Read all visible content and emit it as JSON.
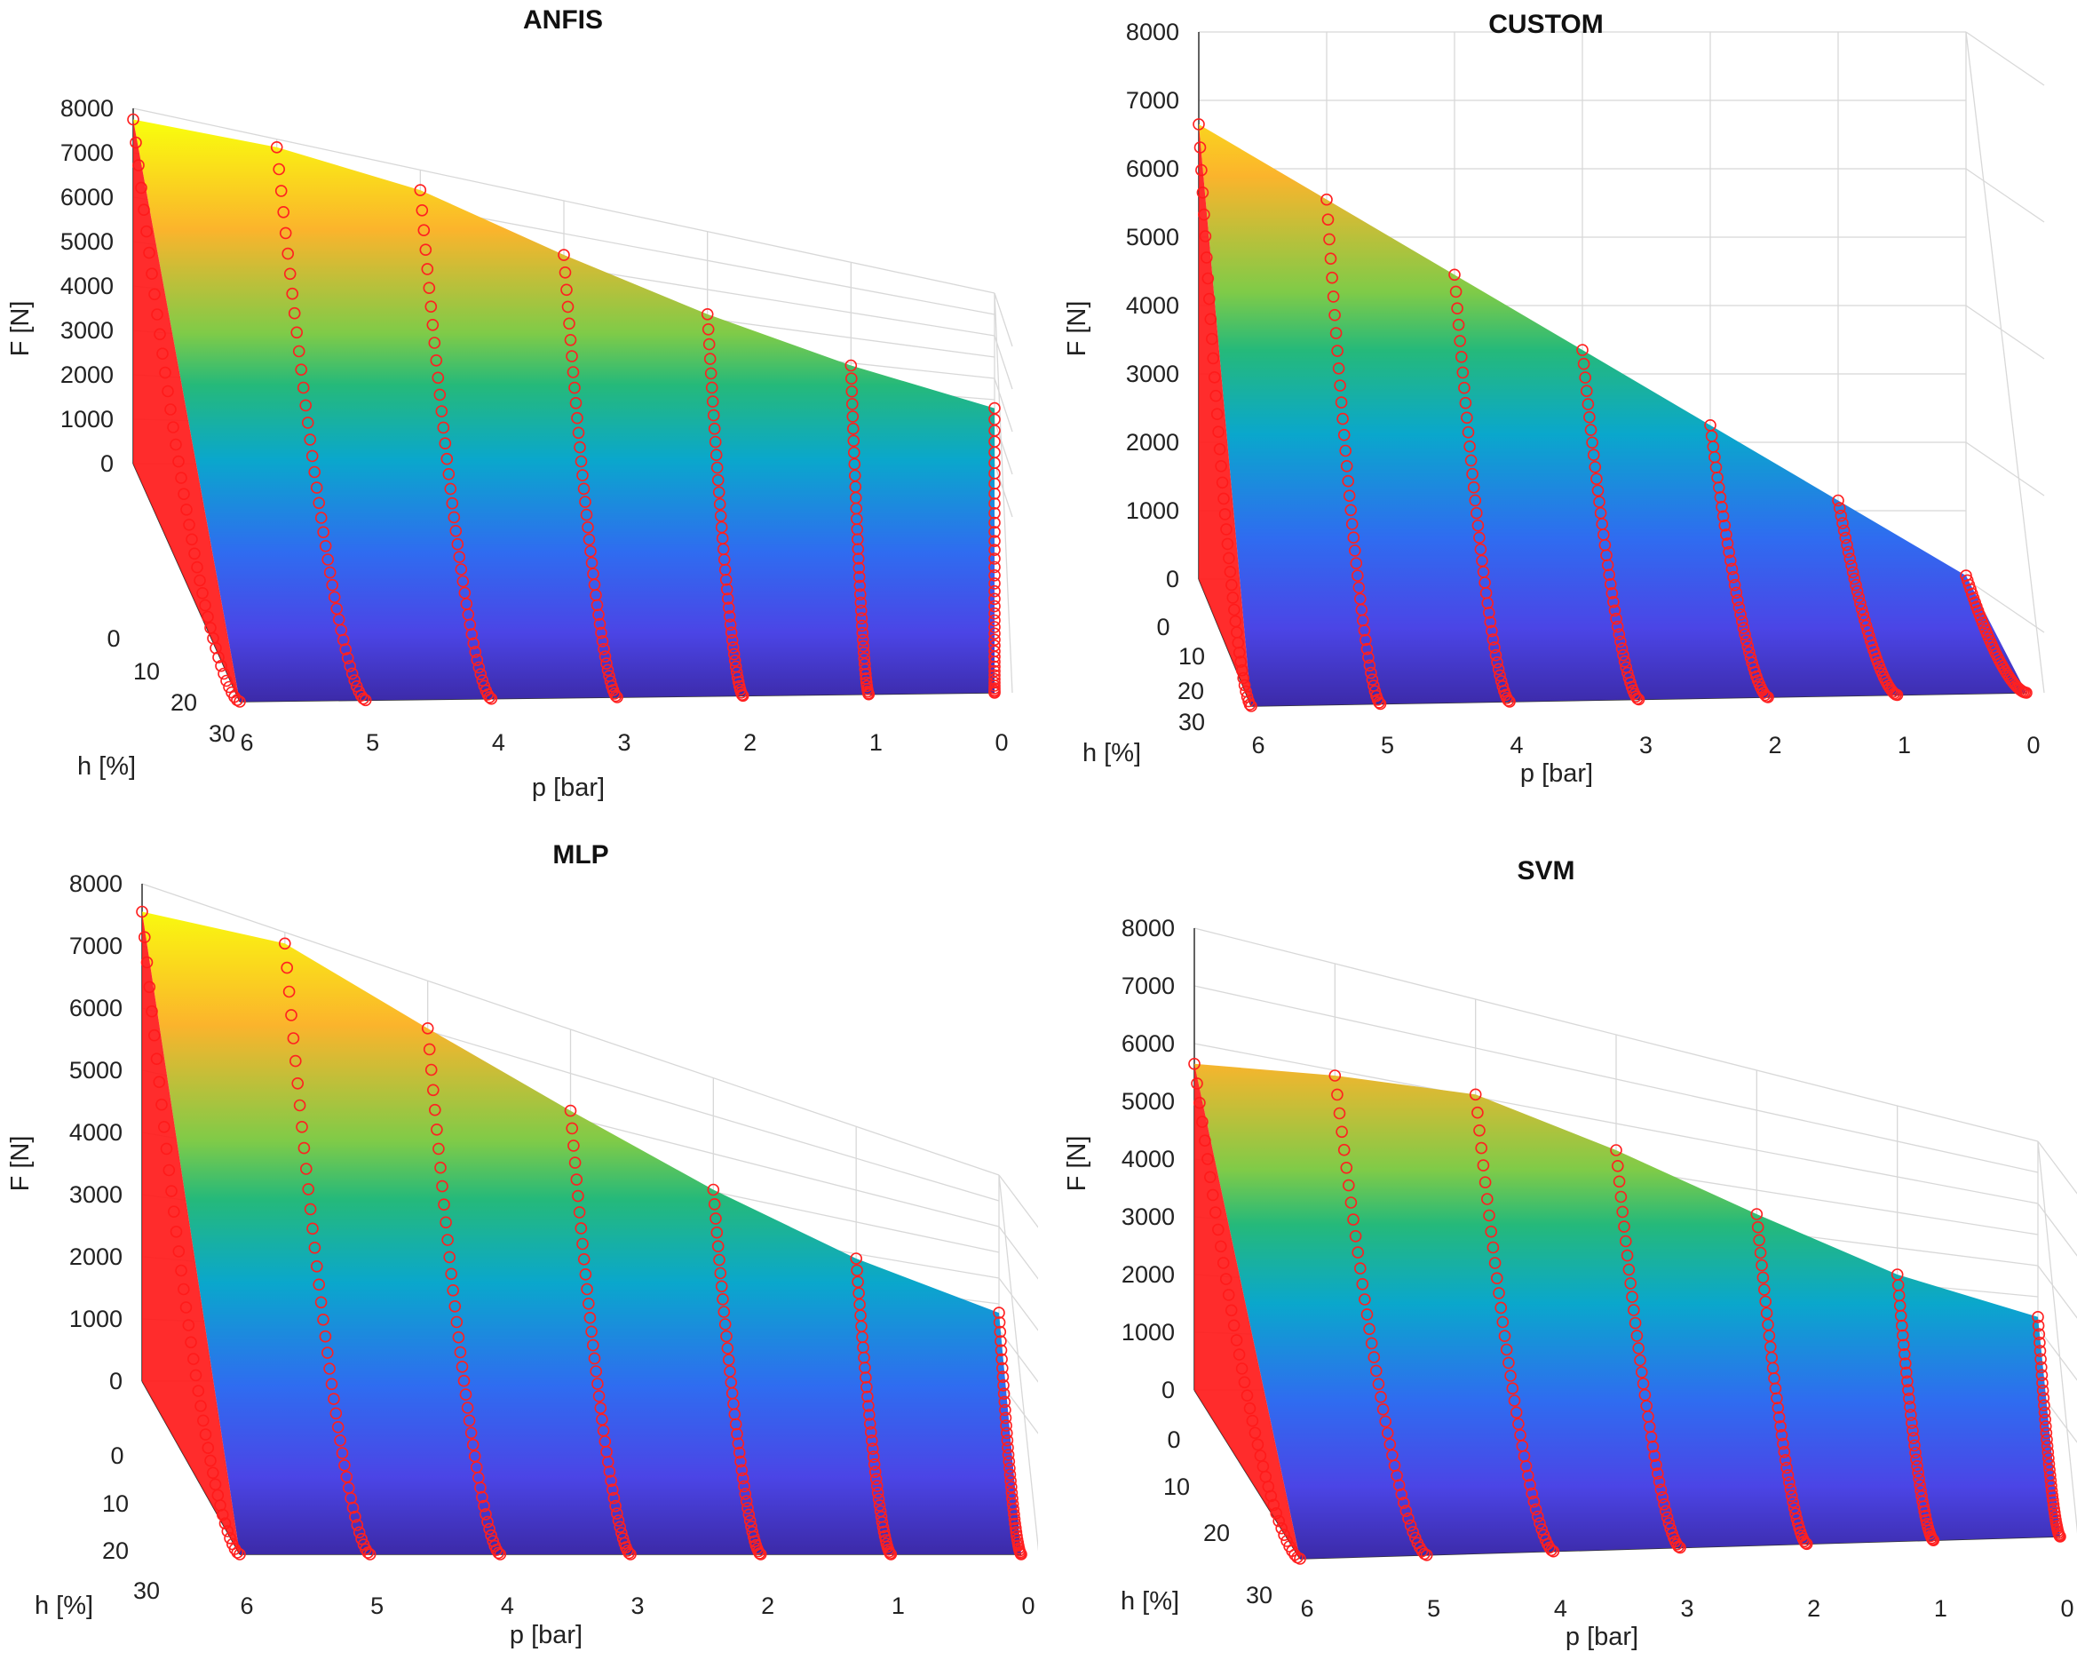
{
  "chart_data": [
    {
      "type": "surface3d",
      "title": "ANFIS",
      "xlabel": "p [bar]",
      "ylabel": "h [%]",
      "zlabel": "F [N]",
      "x_ticks": [
        "6",
        "5",
        "4",
        "3",
        "2",
        "1",
        "0"
      ],
      "y_ticks": [
        "0",
        "10",
        "20",
        "30"
      ],
      "z_ticks": [
        "0",
        "1000",
        "2000",
        "3000",
        "4000",
        "5000",
        "6000",
        "7000",
        "8000"
      ],
      "zlim": [
        0,
        8000
      ],
      "p": [
        6,
        5,
        4,
        3,
        2,
        1,
        0
      ],
      "peak_force": [
        7750,
        7800,
        7450,
        6350,
        5150,
        3900,
        2600
      ],
      "markers": "red circles",
      "colormap": "parula"
    },
    {
      "type": "surface3d",
      "title": "CUSTOM",
      "xlabel": "p [bar]",
      "ylabel": "h [%]",
      "zlabel": "F [N]",
      "x_ticks": [
        "6",
        "5",
        "4",
        "3",
        "2",
        "1",
        "0"
      ],
      "y_ticks": [
        "0",
        "10",
        "20",
        "30"
      ],
      "z_ticks": [
        "0",
        "1000",
        "2000",
        "3000",
        "4000",
        "5000",
        "6000",
        "7000",
        "8000"
      ],
      "zlim": [
        0,
        8000
      ],
      "p": [
        6,
        5,
        4,
        3,
        2,
        1,
        0
      ],
      "peak_force": [
        6650,
        5550,
        4450,
        3350,
        2250,
        1150,
        50
      ],
      "markers": "red circles",
      "colormap": "parula"
    },
    {
      "type": "surface3d",
      "title": "MLP",
      "xlabel": "p [bar]",
      "ylabel": "h [%]",
      "zlabel": "F [N]",
      "x_ticks": [
        "6",
        "5",
        "4",
        "3",
        "2",
        "1",
        "0"
      ],
      "y_ticks": [
        "0",
        "10",
        "20",
        "30"
      ],
      "z_ticks": [
        "0",
        "1000",
        "2000",
        "3000",
        "4000",
        "5000",
        "6000",
        "7000",
        "8000"
      ],
      "zlim": [
        0,
        8000
      ],
      "p": [
        6,
        5,
        4,
        3,
        2,
        1,
        0
      ],
      "peak_force": [
        7550,
        7800,
        7050,
        6150,
        5050,
        3850,
        2650
      ],
      "markers": "red circles",
      "colormap": "parula"
    },
    {
      "type": "surface3d",
      "title": "SVM",
      "xlabel": "p [bar]",
      "ylabel": "h [%]",
      "zlabel": "F [N]",
      "x_ticks": [
        "6",
        "5",
        "4",
        "3",
        "2",
        "1",
        "0"
      ],
      "y_ticks": [
        "0",
        "10",
        "20",
        "30"
      ],
      "z_ticks": [
        "0",
        "1000",
        "2000",
        "3000",
        "4000",
        "5000",
        "6000",
        "7000",
        "8000"
      ],
      "zlim": [
        0,
        8000
      ],
      "p": [
        6,
        5,
        4,
        3,
        2,
        1,
        0
      ],
      "peak_force": [
        5650,
        5900,
        6050,
        5400,
        4400,
        3250,
        2350
      ],
      "markers": "red circles",
      "colormap": "parula"
    }
  ]
}
